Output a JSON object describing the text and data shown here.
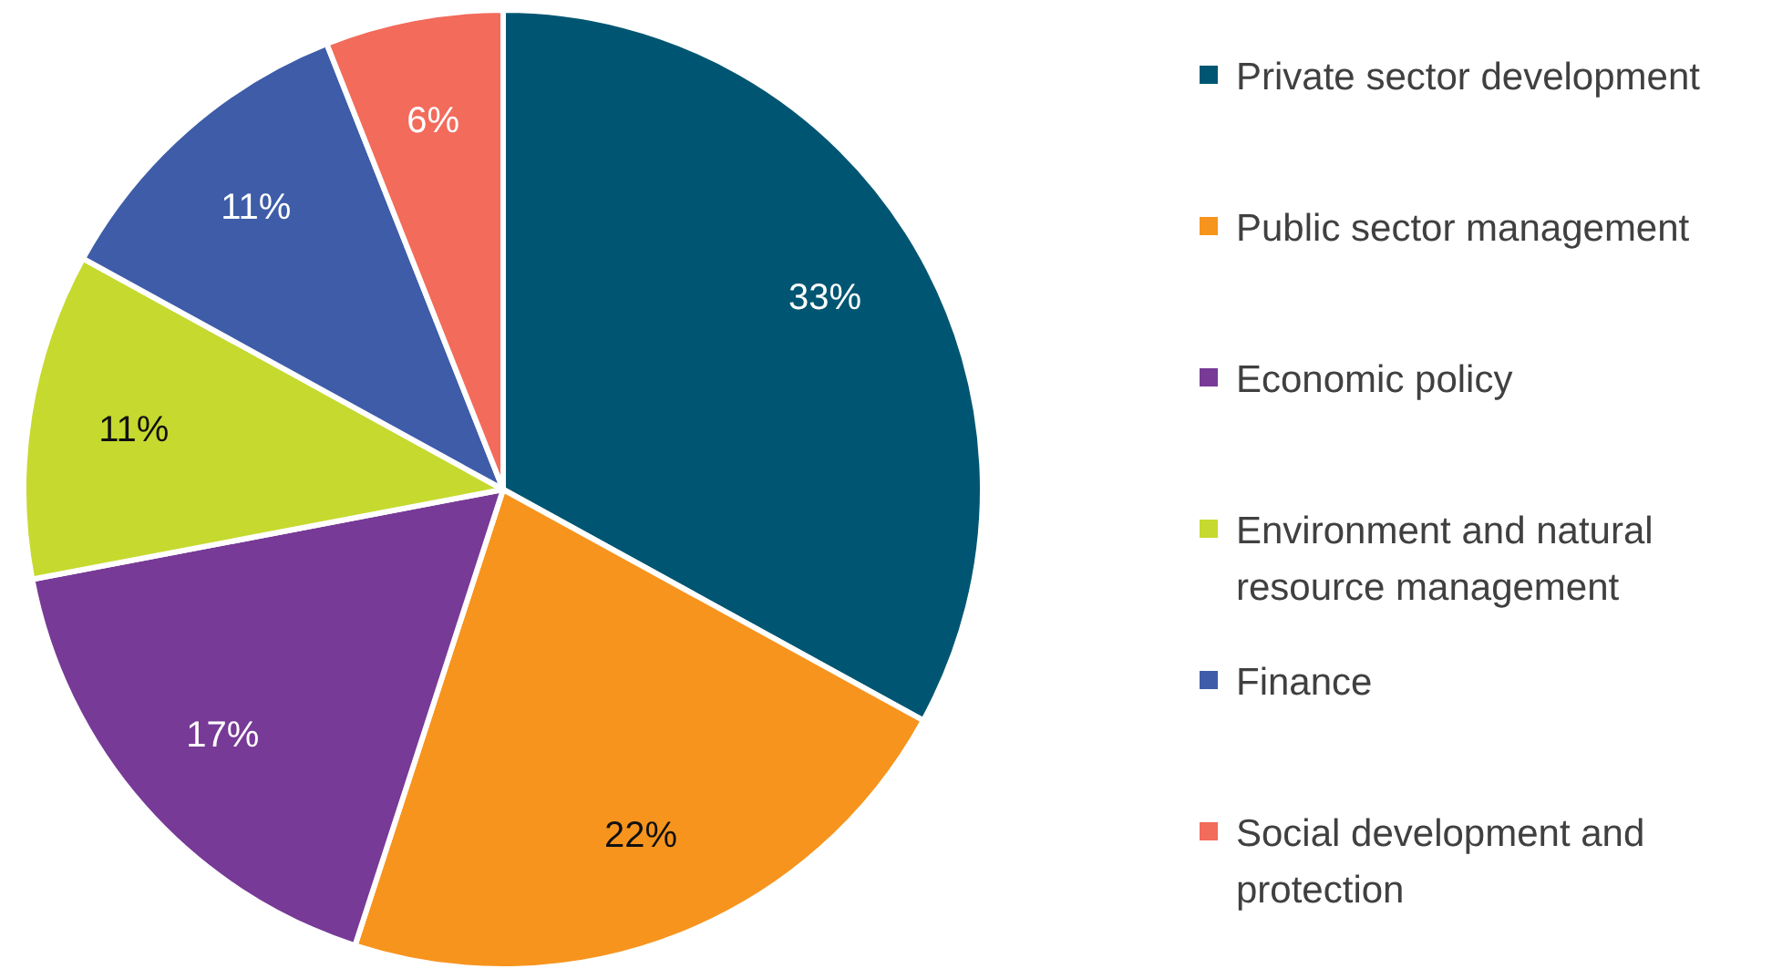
{
  "chart_data": {
    "type": "pie",
    "categories": [
      "Private sector development",
      "Public sector management",
      "Economic policy",
      "Environment and natural resource management",
      "Finance",
      "Social development and protection"
    ],
    "values": [
      33,
      22,
      17,
      11,
      11,
      6
    ],
    "colors": [
      "#005672",
      "#f7941d",
      "#773a96",
      "#c6d92f",
      "#3e5ca8",
      "#f26b5b"
    ],
    "value_labels": [
      "33%",
      "22%",
      "17%",
      "11%",
      "11%",
      "6%"
    ],
    "legend": "right"
  }
}
